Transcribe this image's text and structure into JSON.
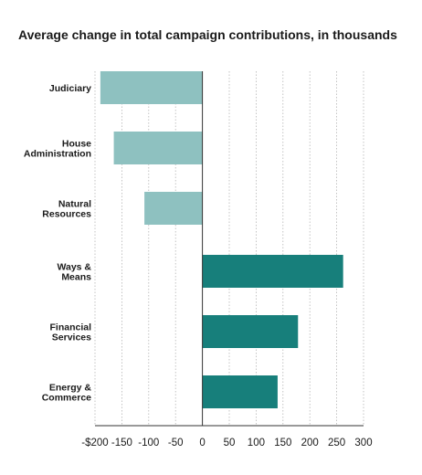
{
  "chart_data": {
    "type": "bar",
    "orientation": "horizontal",
    "title": "Average change in total campaign contributions, in thousands",
    "categories": [
      [
        "Judiciary"
      ],
      [
        "House",
        "Administration"
      ],
      [
        "Natural",
        "Resources"
      ],
      [
        "Ways &",
        "Means"
      ],
      [
        "Financial",
        "Services"
      ],
      [
        "Energy &",
        "Commerce"
      ]
    ],
    "values": [
      -190,
      -165,
      -108,
      262,
      178,
      140
    ],
    "colors": [
      "#8ec1c0",
      "#8ec1c0",
      "#8ec1c0",
      "#177f7b",
      "#177f7b",
      "#177f7b"
    ],
    "xlim": [
      -200,
      300
    ],
    "x_ticks": [
      -200,
      -150,
      -100,
      -50,
      0,
      50,
      100,
      150,
      200,
      250,
      300
    ],
    "x_tick_labels": [
      "-$200",
      "-150",
      "-100",
      "-50",
      "0",
      "50",
      "100",
      "150",
      "200",
      "250",
      "300"
    ],
    "grid": true,
    "grid_style": "dotted vertical"
  }
}
